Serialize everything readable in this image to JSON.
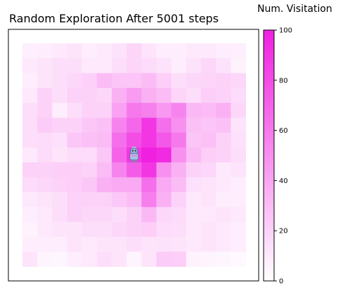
{
  "title": "Random Exploration After 5001 steps",
  "colorbar": {
    "label": "Num. Visitation",
    "min": 0,
    "max": 100,
    "ticks": [
      "0",
      "20",
      "40",
      "60",
      "80",
      "100"
    ],
    "color_low": "#ffffff",
    "color_high": "#f020e0"
  },
  "agent_icon": "robot-icon",
  "chart_data": {
    "type": "heatmap",
    "title": "Random Exploration After 5001 steps",
    "rows": 15,
    "cols": 15,
    "vmin": 0,
    "vmax": 100,
    "colorbar_label": "Num. Visitation",
    "colorbar_ticks": [
      0,
      20,
      40,
      60,
      80,
      100
    ],
    "agent_cell": [
      7,
      7
    ],
    "values": [
      [
        7,
        8,
        10,
        12,
        8,
        10,
        13,
        19,
        12,
        8,
        8,
        10,
        10,
        8,
        7
      ],
      [
        10,
        12,
        15,
        15,
        10,
        10,
        15,
        19,
        16,
        13,
        8,
        13,
        18,
        13,
        6
      ],
      [
        8,
        12,
        15,
        18,
        21,
        30,
        26,
        26,
        30,
        22,
        15,
        18,
        19,
        20,
        18
      ],
      [
        10,
        20,
        15,
        20,
        20,
        18,
        35,
        45,
        35,
        30,
        19,
        15,
        22,
        20,
        16
      ],
      [
        15,
        20,
        8,
        15,
        20,
        20,
        42,
        60,
        57,
        46,
        55,
        32,
        30,
        35,
        18
      ],
      [
        15,
        23,
        20,
        20,
        25,
        28,
        55,
        68,
        90,
        65,
        50,
        28,
        26,
        28,
        12
      ],
      [
        15,
        16,
        14,
        25,
        28,
        30,
        65,
        80,
        90,
        75,
        60,
        26,
        28,
        20,
        14
      ],
      [
        10,
        16,
        12,
        16,
        16,
        25,
        70,
        90,
        100,
        95,
        50,
        30,
        22,
        20,
        15
      ],
      [
        20,
        20,
        22,
        22,
        20,
        30,
        55,
        73,
        90,
        50,
        35,
        20,
        18,
        10,
        12
      ],
      [
        16,
        18,
        20,
        22,
        25,
        35,
        38,
        38,
        65,
        38,
        30,
        14,
        12,
        10,
        8
      ],
      [
        10,
        12,
        15,
        20,
        20,
        20,
        25,
        30,
        58,
        35,
        20,
        10,
        12,
        8,
        8
      ],
      [
        8,
        10,
        15,
        20,
        18,
        18,
        15,
        20,
        32,
        18,
        16,
        10,
        10,
        12,
        10
      ],
      [
        6,
        10,
        12,
        12,
        15,
        15,
        18,
        20,
        22,
        16,
        15,
        10,
        12,
        10,
        8
      ],
      [
        8,
        8,
        8,
        12,
        10,
        12,
        12,
        15,
        12,
        13,
        12,
        10,
        12,
        10,
        8
      ],
      [
        12,
        5,
        4,
        8,
        10,
        15,
        12,
        5,
        12,
        23,
        22,
        6,
        5,
        4,
        3
      ]
    ]
  }
}
